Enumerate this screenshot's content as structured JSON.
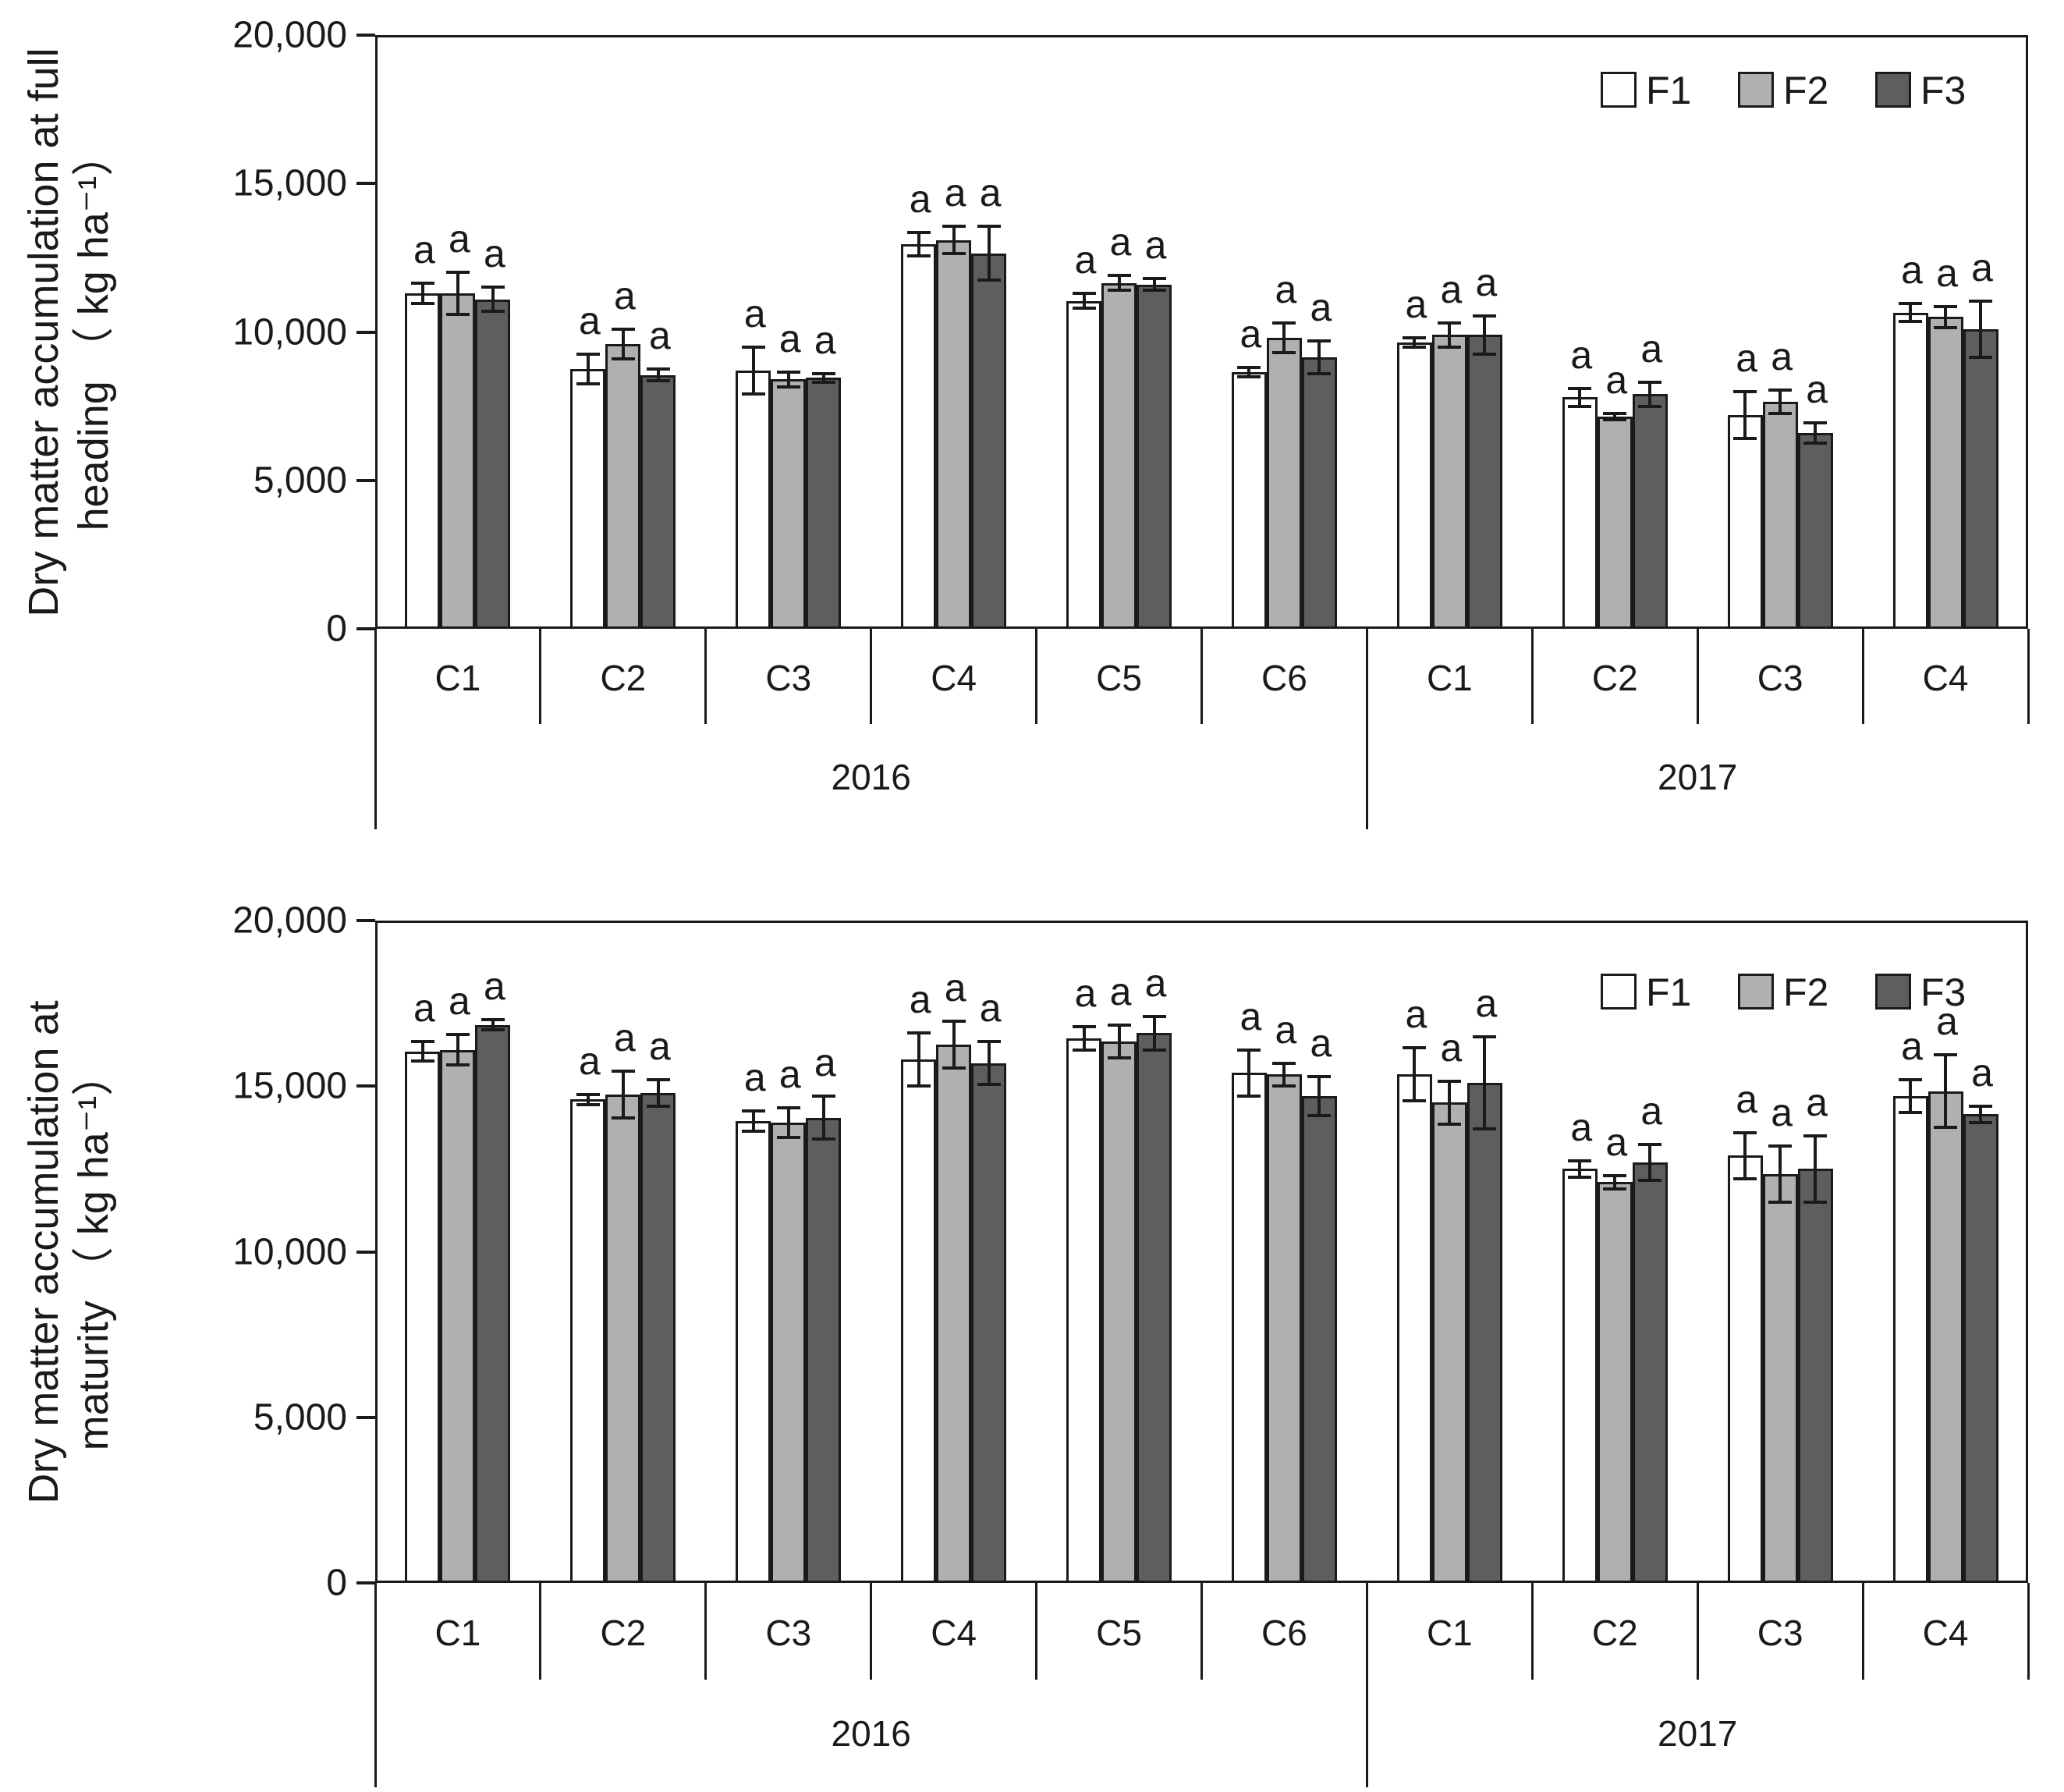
{
  "figure": {
    "background": "#ffffff"
  },
  "legend": {
    "items": [
      {
        "label": "F1",
        "color": "#ffffff"
      },
      {
        "label": "F2",
        "color": "#b0b0b0"
      },
      {
        "label": "F3",
        "color": "#5e5e5e"
      }
    ]
  },
  "chart_data": [
    {
      "type": "bar",
      "title": "Dry matter accumulation at full heading",
      "ylabel_lines": [
        "Dry matter accumulation at full",
        "heading （ kg ha⁻¹）"
      ],
      "ylim": [
        0,
        20000
      ],
      "yticks": [
        {
          "value": 0,
          "label": "0"
        },
        {
          "value": 5000,
          "label": "5,000"
        },
        {
          "value": 10000,
          "label": "10,000"
        },
        {
          "value": 15000,
          "label": "15,000"
        },
        {
          "value": 20000,
          "label": "20,000"
        }
      ],
      "grid": false,
      "legend_position": "top-right",
      "series": [
        "F1",
        "F2",
        "F3"
      ],
      "year_groups": [
        {
          "year": "2016",
          "categories": [
            "C1",
            "C2",
            "C3",
            "C4",
            "C5",
            "C6"
          ]
        },
        {
          "year": "2017",
          "categories": [
            "C1",
            "C2",
            "C3",
            "C4"
          ]
        }
      ],
      "groups": [
        {
          "year": "2016",
          "category": "C1",
          "bars": [
            {
              "series": "F1",
              "value": 11300,
              "error": 350,
              "letter": "a"
            },
            {
              "series": "F2",
              "value": 11300,
              "error": 700,
              "letter": "a"
            },
            {
              "series": "F3",
              "value": 11100,
              "error": 400,
              "letter": "a"
            }
          ]
        },
        {
          "year": "2016",
          "category": "C2",
          "bars": [
            {
              "series": "F1",
              "value": 8750,
              "error": 500,
              "letter": "a"
            },
            {
              "series": "F2",
              "value": 9600,
              "error": 500,
              "letter": "a"
            },
            {
              "series": "F3",
              "value": 8550,
              "error": 200,
              "letter": "a"
            }
          ]
        },
        {
          "year": "2016",
          "category": "C3",
          "bars": [
            {
              "series": "F1",
              "value": 8700,
              "error": 800,
              "letter": "a"
            },
            {
              "series": "F2",
              "value": 8400,
              "error": 250,
              "letter": "a"
            },
            {
              "series": "F3",
              "value": 8450,
              "error": 150,
              "letter": "a"
            }
          ]
        },
        {
          "year": "2016",
          "category": "C4",
          "bars": [
            {
              "series": "F1",
              "value": 12950,
              "error": 400,
              "letter": "a"
            },
            {
              "series": "F2",
              "value": 13100,
              "error": 450,
              "letter": "a"
            },
            {
              "series": "F3",
              "value": 12650,
              "error": 900,
              "letter": "a"
            }
          ]
        },
        {
          "year": "2016",
          "category": "C5",
          "bars": [
            {
              "series": "F1",
              "value": 11050,
              "error": 250,
              "letter": "a"
            },
            {
              "series": "F2",
              "value": 11650,
              "error": 250,
              "letter": "a"
            },
            {
              "series": "F3",
              "value": 11600,
              "error": 200,
              "letter": "a"
            }
          ]
        },
        {
          "year": "2016",
          "category": "C6",
          "bars": [
            {
              "series": "F1",
              "value": 8650,
              "error": 150,
              "letter": "a"
            },
            {
              "series": "F2",
              "value": 9800,
              "error": 500,
              "letter": "a"
            },
            {
              "series": "F3",
              "value": 9150,
              "error": 550,
              "letter": "a"
            }
          ]
        },
        {
          "year": "2017",
          "category": "C1",
          "bars": [
            {
              "series": "F1",
              "value": 9650,
              "error": 150,
              "letter": "a"
            },
            {
              "series": "F2",
              "value": 9900,
              "error": 400,
              "letter": "a"
            },
            {
              "series": "F3",
              "value": 9900,
              "error": 650,
              "letter": "a"
            }
          ]
        },
        {
          "year": "2017",
          "category": "C2",
          "bars": [
            {
              "series": "F1",
              "value": 7800,
              "error": 300,
              "letter": "a"
            },
            {
              "series": "F2",
              "value": 7150,
              "error": 100,
              "letter": "a"
            },
            {
              "series": "F3",
              "value": 7900,
              "error": 400,
              "letter": "a"
            }
          ]
        },
        {
          "year": "2017",
          "category": "C3",
          "bars": [
            {
              "series": "F1",
              "value": 7200,
              "error": 800,
              "letter": "a"
            },
            {
              "series": "F2",
              "value": 7650,
              "error": 400,
              "letter": "a"
            },
            {
              "series": "F3",
              "value": 6600,
              "error": 350,
              "letter": "a"
            }
          ]
        },
        {
          "year": "2017",
          "category": "C4",
          "bars": [
            {
              "series": "F1",
              "value": 10650,
              "error": 300,
              "letter": "a"
            },
            {
              "series": "F2",
              "value": 10500,
              "error": 350,
              "letter": "a"
            },
            {
              "series": "F3",
              "value": 10100,
              "error": 950,
              "letter": "a"
            }
          ]
        }
      ]
    },
    {
      "type": "bar",
      "title": "Dry matter accumulation at maturity",
      "ylabel_lines": [
        "Dry matter accumulation at",
        "maturity （ kg ha⁻¹）"
      ],
      "ylim": [
        0,
        20000
      ],
      "yticks": [
        {
          "value": 0,
          "label": "0"
        },
        {
          "value": 5000,
          "label": "5,000"
        },
        {
          "value": 10000,
          "label": "10,000"
        },
        {
          "value": 15000,
          "label": "15,000"
        },
        {
          "value": 20000,
          "label": "20,000"
        }
      ],
      "grid": false,
      "legend_position": "top-right",
      "series": [
        "F1",
        "F2",
        "F3"
      ],
      "year_groups": [
        {
          "year": "2016",
          "categories": [
            "C1",
            "C2",
            "C3",
            "C4",
            "C5",
            "C6"
          ]
        },
        {
          "year": "2017",
          "categories": [
            "C1",
            "C2",
            "C3",
            "C4"
          ]
        }
      ],
      "groups": [
        {
          "year": "2016",
          "category": "C1",
          "bars": [
            {
              "series": "F1",
              "value": 16050,
              "error": 300,
              "letter": "a"
            },
            {
              "series": "F2",
              "value": 16100,
              "error": 450,
              "letter": "a"
            },
            {
              "series": "F3",
              "value": 16850,
              "error": 150,
              "letter": "a"
            }
          ]
        },
        {
          "year": "2016",
          "category": "C2",
          "bars": [
            {
              "series": "F1",
              "value": 14600,
              "error": 150,
              "letter": "a"
            },
            {
              "series": "F2",
              "value": 14750,
              "error": 700,
              "letter": "a"
            },
            {
              "series": "F3",
              "value": 14800,
              "error": 400,
              "letter": "a"
            }
          ]
        },
        {
          "year": "2016",
          "category": "C3",
          "bars": [
            {
              "series": "F1",
              "value": 13950,
              "error": 300,
              "letter": "a"
            },
            {
              "series": "F2",
              "value": 13900,
              "error": 450,
              "letter": "a"
            },
            {
              "series": "F3",
              "value": 14050,
              "error": 650,
              "letter": "a"
            }
          ]
        },
        {
          "year": "2016",
          "category": "C4",
          "bars": [
            {
              "series": "F1",
              "value": 15800,
              "error": 800,
              "letter": "a"
            },
            {
              "series": "F2",
              "value": 16250,
              "error": 700,
              "letter": "a"
            },
            {
              "series": "F3",
              "value": 15700,
              "error": 650,
              "letter": "a"
            }
          ]
        },
        {
          "year": "2016",
          "category": "C5",
          "bars": [
            {
              "series": "F1",
              "value": 16450,
              "error": 350,
              "letter": "a"
            },
            {
              "series": "F2",
              "value": 16350,
              "error": 500,
              "letter": "a"
            },
            {
              "series": "F3",
              "value": 16600,
              "error": 500,
              "letter": "a"
            }
          ]
        },
        {
          "year": "2016",
          "category": "C6",
          "bars": [
            {
              "series": "F1",
              "value": 15400,
              "error": 700,
              "letter": "a"
            },
            {
              "series": "F2",
              "value": 15350,
              "error": 350,
              "letter": "a"
            },
            {
              "series": "F3",
              "value": 14700,
              "error": 600,
              "letter": "a"
            }
          ]
        },
        {
          "year": "2017",
          "category": "C1",
          "bars": [
            {
              "series": "F1",
              "value": 15350,
              "error": 800,
              "letter": "a"
            },
            {
              "series": "F2",
              "value": 14500,
              "error": 650,
              "letter": "a"
            },
            {
              "series": "F3",
              "value": 15100,
              "error": 1400,
              "letter": "a"
            }
          ]
        },
        {
          "year": "2017",
          "category": "C2",
          "bars": [
            {
              "series": "F1",
              "value": 12500,
              "error": 250,
              "letter": "a"
            },
            {
              "series": "F2",
              "value": 12100,
              "error": 200,
              "letter": "a"
            },
            {
              "series": "F3",
              "value": 12700,
              "error": 550,
              "letter": "a"
            }
          ]
        },
        {
          "year": "2017",
          "category": "C3",
          "bars": [
            {
              "series": "F1",
              "value": 12900,
              "error": 700,
              "letter": "a"
            },
            {
              "series": "F2",
              "value": 12350,
              "error": 850,
              "letter": "a"
            },
            {
              "series": "F3",
              "value": 12500,
              "error": 1000,
              "letter": "a"
            }
          ]
        },
        {
          "year": "2017",
          "category": "C4",
          "bars": [
            {
              "series": "F1",
              "value": 14700,
              "error": 500,
              "letter": "a"
            },
            {
              "series": "F2",
              "value": 14850,
              "error": 1100,
              "letter": "a"
            },
            {
              "series": "F3",
              "value": 14150,
              "error": 250,
              "letter": "a"
            }
          ]
        }
      ]
    }
  ]
}
